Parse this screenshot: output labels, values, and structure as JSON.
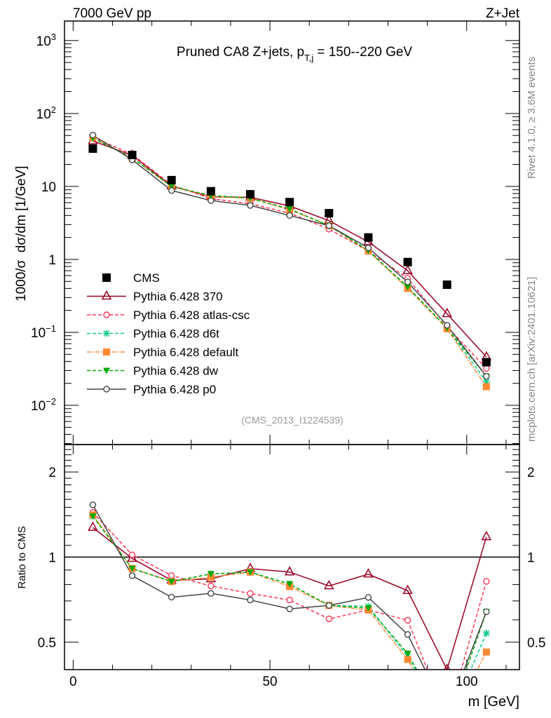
{
  "header": {
    "left": "7000 GeV pp",
    "right": "Z+Jet"
  },
  "side": {
    "rivet": "Rivet 4.1.0, ≥ 3.6M events",
    "mcplots": "mcplots.cern.ch [arXiv:2401.10621]"
  },
  "chart_data": {
    "type": "scatter",
    "title": "Pruned CA8 Z+jets, p",
    "title_sub": "T,j",
    "title_tail": " = 150--220 GeV",
    "analysis": "(CMS_2013_I1224539)",
    "xlabel": "m [GeV]",
    "ylabel": "1000/σ  dσ/dm [1/GeV]",
    "ratio_ylabel": "Ratio to CMS",
    "xlim": [
      -2.2,
      113.4
    ],
    "ylim": [
      0.0029,
      1850
    ],
    "yscale": "log",
    "ratio_ylim": [
      0.4,
      2.5
    ],
    "ratio_yscale": "log",
    "x_ticks": [
      "0",
      "50",
      "100"
    ],
    "x_tick_values": [
      0,
      50,
      100
    ],
    "y_ticks": [
      {
        "base": "10",
        "exp": "3",
        "v": 1000
      },
      {
        "base": "10",
        "exp": "2",
        "v": 100
      },
      {
        "base": "10",
        "exp": "",
        "v": 10
      },
      {
        "base": "1",
        "exp": "",
        "v": 1
      },
      {
        "base": "10",
        "exp": "−1",
        "v": 0.1
      },
      {
        "base": "10",
        "exp": "−2",
        "v": 0.01
      }
    ],
    "ratio_ticks": [
      {
        "label": "2",
        "v": 2
      },
      {
        "label": "1",
        "v": 1
      },
      {
        "label": "0.5",
        "v": 0.5
      }
    ],
    "x": [
      5,
      15,
      25,
      35,
      45,
      55,
      65,
      75,
      85,
      95,
      105
    ],
    "reference": {
      "name": "CMS",
      "color": "#000000",
      "marker": "square-filled",
      "values": [
        33,
        27,
        12.2,
        8.6,
        7.8,
        6.1,
        4.3,
        2.0,
        0.92,
        0.45,
        0.039
      ]
    },
    "series": [
      {
        "name": "Pythia 6.428 370",
        "color": "#990022",
        "marker": "triangle-open",
        "dash": "",
        "values": [
          42,
          26.7,
          10.1,
          7.2,
          7.1,
          5.4,
          3.4,
          1.74,
          0.7,
          0.18,
          0.046
        ]
      },
      {
        "name": "Pythia 6.428 atlas-csc",
        "color": "#ff3355",
        "marker": "circle-open",
        "dash": "5,3",
        "values": [
          47.5,
          27.5,
          10.5,
          6.8,
          5.8,
          4.3,
          2.6,
          1.3,
          0.55,
          0.12,
          0.032
        ]
      },
      {
        "name": "Pythia 6.428 d6t",
        "color": "#11cc88",
        "marker": "asterisk",
        "dash": "5,3",
        "values": [
          46,
          24.6,
          10,
          7.5,
          6.9,
          4.9,
          2.9,
          1.34,
          0.41,
          0.115,
          0.021
        ]
      },
      {
        "name": "Pythia 6.428 default",
        "color": "#ff8833",
        "marker": "square-filled",
        "dash": "6,2,2,2",
        "values": [
          46.5,
          24.6,
          10,
          7.3,
          6.9,
          4.8,
          2.9,
          1.3,
          0.4,
          0.112,
          0.018
        ]
      },
      {
        "name": "Pythia 6.428 dw",
        "color": "#00aa00",
        "marker": "triangle-down-filled",
        "dash": "5,3",
        "values": [
          46,
          24.6,
          10,
          7.5,
          6.9,
          4.9,
          2.9,
          1.32,
          0.42,
          0.115,
          0.025
        ]
      },
      {
        "name": "Pythia 6.428 p0",
        "color": "#444444",
        "marker": "circle-open",
        "dash": "",
        "values": [
          50.5,
          23.2,
          8.8,
          6.4,
          5.5,
          4.0,
          2.9,
          1.44,
          0.49,
          0.125,
          0.025
        ]
      }
    ]
  }
}
